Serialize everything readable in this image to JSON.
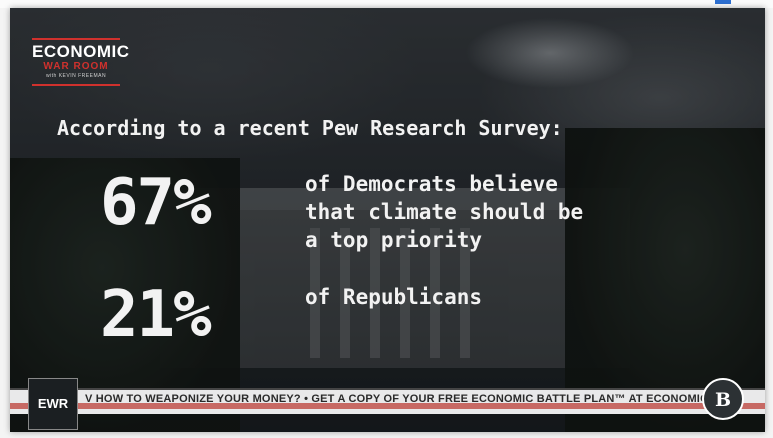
{
  "logo": {
    "line1": "ECONOMIC",
    "line2": "WAR ROOM",
    "line3": "with KEVIN FREEMAN"
  },
  "headline": "According to a recent Pew Research Survey:",
  "stats": [
    {
      "value": "67%",
      "lines": [
        "of Democrats believe",
        "that climate should be",
        "a top priority"
      ]
    },
    {
      "value": "21%",
      "lines": [
        "of Republicans"
      ]
    }
  ],
  "ticker": {
    "text": "V HOW TO WEAPONIZE YOUR MONEY? •  GET A COPY OF YOUR FREE ECONOMIC BATTLE PLAN™ AT ECONOMICWA"
  },
  "badges": {
    "ewr": "EWR",
    "network": "B"
  },
  "colors": {
    "accent": "#d0312d",
    "text": "#f2f2f2",
    "ticker_bg": "#e9e9ea"
  },
  "icons": {
    "network_logo": "blaze-logo-icon"
  }
}
